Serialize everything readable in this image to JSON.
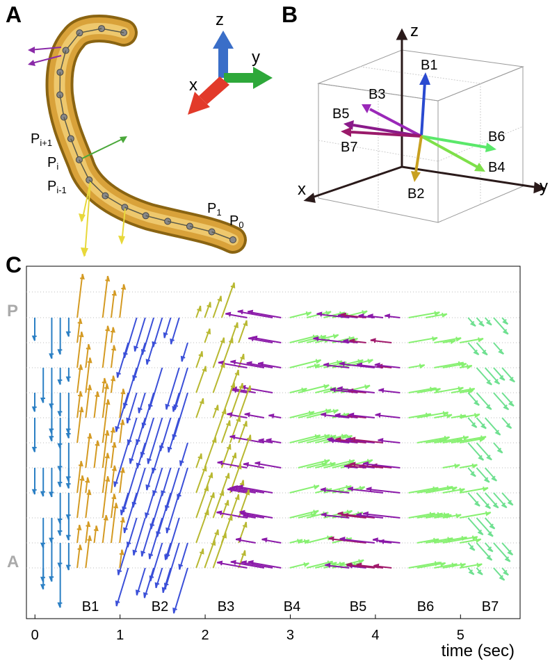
{
  "panel_labels": [
    "A",
    "B",
    "C"
  ],
  "panel_a": {
    "points": [
      {
        "main": "P",
        "sub": "i+1"
      },
      {
        "main": "P",
        "sub": "i"
      },
      {
        "main": "P",
        "sub": "i-1"
      },
      {
        "main": "P",
        "sub": "1"
      },
      {
        "main": "P",
        "sub": "0"
      }
    ],
    "axes": [
      "x",
      "y",
      "z"
    ]
  },
  "panel_b": {
    "axes": [
      "x",
      "y",
      "z"
    ],
    "vectors": [
      "B1",
      "B2",
      "B3",
      "B4",
      "B5",
      "B6",
      "B7"
    ]
  },
  "panel_c": {
    "y_labels": [
      "P",
      "A"
    ],
    "behaviors": [
      "B1",
      "B2",
      "B3",
      "B4",
      "B5",
      "B6",
      "B7"
    ],
    "xlim": [
      -0.1,
      5.7
    ],
    "xticks": [
      0,
      1,
      2,
      3,
      4,
      5
    ],
    "xlabel": "time (sec)"
  }
}
